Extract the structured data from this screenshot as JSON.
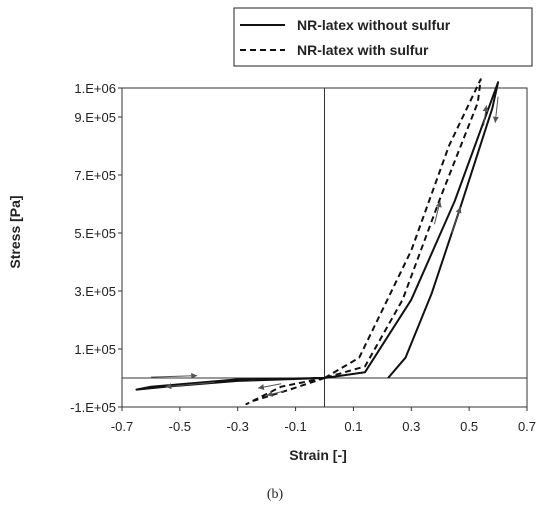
{
  "chart_data": {
    "type": "line",
    "xlabel": "Strain   [-]",
    "ylabel": "Stress   [Pa]",
    "xlim": [
      -0.7,
      0.7
    ],
    "ylim": [
      -100000,
      1000000
    ],
    "x_ticks": [
      "-0.7",
      "-0.5",
      "-0.3",
      "-0.1",
      "0.1",
      "0.3",
      "0.5",
      "0.7"
    ],
    "y_ticks": [
      "-1.E+05",
      "1.E+05",
      "3.E+05",
      "5.E+05",
      "7.E+05",
      "9.E+05",
      "1.E+06"
    ],
    "legend_position": "top-right",
    "series": [
      {
        "name": "NR-latex without sulfur",
        "style": "solid",
        "color": "#111111",
        "segments": [
          [
            [
              0.0,
              0.0
            ],
            [
              0.14,
              20000
            ],
            [
              0.3,
              270000
            ],
            [
              0.45,
              610000
            ],
            [
              0.6,
              1020000
            ],
            [
              0.58,
              930000
            ],
            [
              0.47,
              590000
            ],
            [
              0.37,
              290000
            ],
            [
              0.28,
              70000
            ],
            [
              0.22,
              0
            ]
          ],
          [
            [
              0.0,
              0.0
            ],
            [
              -0.3,
              -10000
            ],
            [
              -0.55,
              -30000
            ],
            [
              -0.65,
              -40000
            ],
            [
              -0.6,
              -30000
            ],
            [
              -0.3,
              -5000
            ],
            [
              0.0,
              0.0
            ]
          ]
        ]
      },
      {
        "name": "NR-latex with sulfur",
        "style": "dashed",
        "color": "#111111",
        "segments": [
          [
            [
              0.0,
              0.0
            ],
            [
              0.12,
              70000
            ],
            [
              0.3,
              440000
            ],
            [
              0.43,
              800000
            ],
            [
              0.54,
              1030000
            ],
            [
              0.53,
              950000
            ],
            [
              0.4,
              620000
            ],
            [
              0.27,
              270000
            ],
            [
              0.14,
              40000
            ],
            [
              0.0,
              0.0
            ]
          ],
          [
            [
              0.0,
              0.0
            ],
            [
              -0.15,
              -30000
            ],
            [
              -0.27,
              -90000
            ],
            [
              -0.25,
              -80000
            ],
            [
              -0.12,
              -40000
            ],
            [
              0.0,
              0.0
            ]
          ]
        ]
      }
    ]
  },
  "legend": {
    "solid_label": "NR-latex without sulfur",
    "dashed_label": "NR-latex with sulfur"
  },
  "caption": "(b)"
}
